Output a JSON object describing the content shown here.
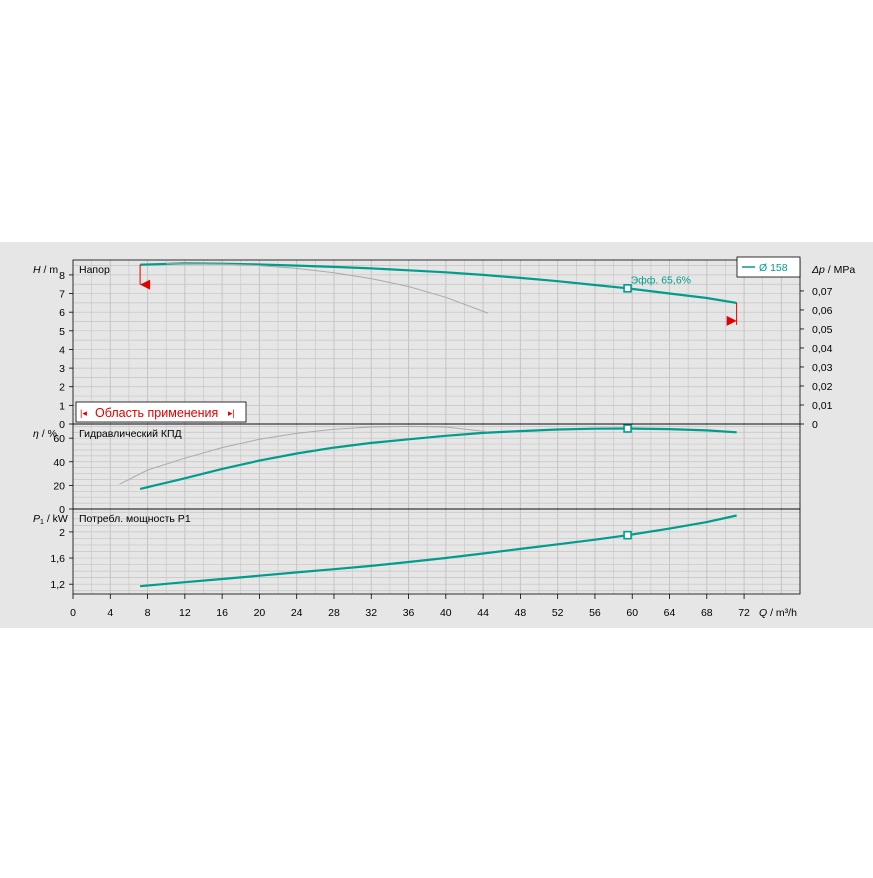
{
  "chart_data": {
    "type": "line",
    "x_axis": {
      "label_symbol": "Q",
      "label_unit": "m³/h",
      "ticks": [
        "0",
        "4",
        "8",
        "12",
        "16",
        "20",
        "24",
        "28",
        "32",
        "36",
        "40",
        "44",
        "48",
        "52",
        "56",
        "60",
        "64",
        "68",
        "72"
      ],
      "range": [
        0,
        78
      ]
    },
    "panels": [
      {
        "id": "head",
        "title": "Напор",
        "y_symbol": "H",
        "y_unit": "m",
        "y_range": [
          0,
          8.8
        ],
        "y_ticks": [
          "0",
          "1",
          "2",
          "3",
          "4",
          "5",
          "6",
          "7",
          "8"
        ],
        "right_axis": {
          "symbol": "Δp",
          "unit": "MPa",
          "ticks": [
            "0",
            "0,01",
            "0,02",
            "0,03",
            "0,04",
            "0,05",
            "0,06",
            "0,07"
          ]
        },
        "legend": "— Ø 158",
        "annotation": "Эфф.  65,6%",
        "range_box": "Область применения",
        "series": [
          {
            "name": "Ø 158",
            "x": [
              7.2,
              12,
              16,
              20,
              24,
              28,
              32,
              36,
              40,
              44,
              48,
              52,
              56,
              59.5,
              64,
              68,
              71.2
            ],
            "y": [
              8.55,
              8.62,
              8.6,
              8.56,
              8.5,
              8.43,
              8.35,
              8.25,
              8.14,
              8.0,
              7.84,
              7.66,
              7.46,
              7.28,
              7.0,
              6.76,
              6.5
            ],
            "color": "#009d8c"
          },
          {
            "name": "",
            "x": [
              10,
              16,
              20,
              24,
              28,
              32,
              36,
              40,
              44.5
            ],
            "y": [
              8.6,
              8.58,
              8.5,
              8.35,
              8.12,
              7.8,
              7.38,
              6.8,
              5.95
            ],
            "color": "#aaaaaa"
          }
        ],
        "operating_point": {
          "x": 59.5,
          "y": 7.28
        },
        "range_markers": {
          "left_x": 7.2,
          "right_x": 71.2
        }
      },
      {
        "id": "efficiency",
        "title": "Гидравлический КПД",
        "y_symbol": "η",
        "y_unit": "%",
        "y_range": [
          0,
          72
        ],
        "y_ticks": [
          "0",
          "20",
          "40",
          "60"
        ],
        "series": [
          {
            "name": "",
            "x": [
              7.2,
              12,
              16,
              20,
              24,
              28,
              32,
              36,
              40,
              44,
              48,
              52,
              56,
              59.5,
              64,
              68,
              71.2
            ],
            "y": [
              17,
              26,
              34,
              41,
              47,
              52,
              56,
              59,
              62,
              64.5,
              66,
              67.3,
              68,
              68.2,
              67.7,
              66.6,
              65
            ],
            "color": "#009d8c"
          },
          {
            "name": "",
            "x": [
              5,
              8,
              12,
              16,
              20,
              24,
              28,
              32,
              36,
              40,
              44.5
            ],
            "y": [
              21,
              33,
              43,
              52,
              59,
              64,
              67.5,
              69.5,
              70,
              69.5,
              65.5
            ],
            "color": "#aaaaaa"
          }
        ],
        "operating_point": {
          "x": 59.5,
          "y": 68.2
        }
      },
      {
        "id": "power",
        "title": "Потребл. мощность P1",
        "y_symbol": "P",
        "y_sub": "1",
        "y_unit": "kW",
        "y_range": [
          1.05,
          2.35
        ],
        "y_ticks": [
          "1,2",
          "1,6",
          "2"
        ],
        "y_tick_values": [
          1.2,
          1.6,
          2.0
        ],
        "series": [
          {
            "name": "",
            "x": [
              7.2,
              12,
              16,
              20,
              24,
              28,
              32,
              36,
              40,
              44,
              48,
              52,
              56,
              59.5,
              64,
              68,
              71.2
            ],
            "y": [
              1.17,
              1.23,
              1.28,
              1.33,
              1.38,
              1.43,
              1.48,
              1.54,
              1.6,
              1.67,
              1.74,
              1.81,
              1.88,
              1.95,
              2.05,
              2.15,
              2.25
            ],
            "color": "#009d8c"
          }
        ],
        "operating_point": {
          "x": 59.5,
          "y": 1.95
        }
      }
    ],
    "grid": true,
    "colors": {
      "curve": "#009d8c",
      "reference": "#aaaaaa",
      "range_marker": "#e00000",
      "background": "#e6e6e6",
      "grid": "#c0c0c0"
    }
  }
}
